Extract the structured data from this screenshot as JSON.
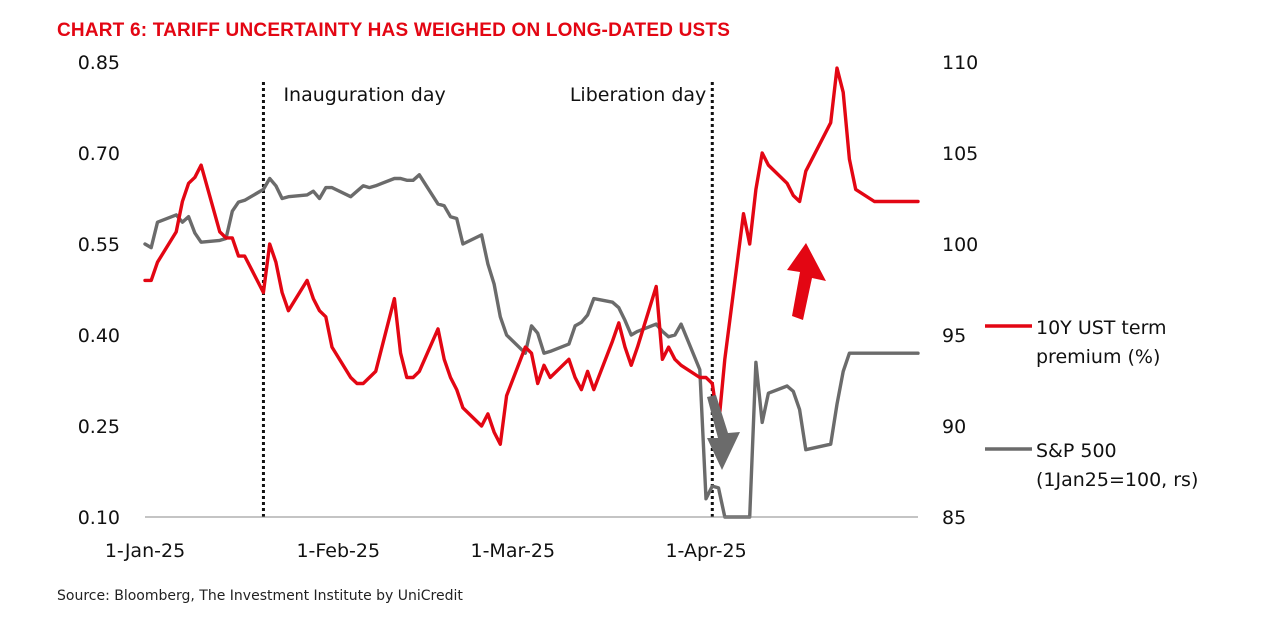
{
  "chart_data": {
    "type": "line",
    "title": "CHART 6: TARIFF UNCERTAINTY HAS WEIGHED ON LONG-DATED USTS",
    "source": "Source: Bloomberg, The Investment Institute by UniCredit",
    "x_ticks": [
      "1-Jan-25",
      "1-Feb-25",
      "1-Mar-25",
      "1-Apr-25"
    ],
    "xlim": [
      "2025-01-01",
      "2025-05-05"
    ],
    "y_left": {
      "lim": [
        0.1,
        0.85
      ],
      "ticks": [
        "0.10",
        "0.25",
        "0.40",
        "0.55",
        "0.70",
        "0.85"
      ]
    },
    "y_right": {
      "lim": [
        85,
        110
      ],
      "ticks": [
        "85",
        "90",
        "95",
        "100",
        "105",
        "110"
      ]
    },
    "annotations": [
      {
        "label": "Inauguration day",
        "date": "2025-01-20"
      },
      {
        "label": "Liberation day",
        "date": "2025-04-02"
      }
    ],
    "legend": {
      "placement": "right"
    },
    "series": [
      {
        "name_lines": [
          "10Y UST term",
          "premium (%)"
        ],
        "axis": "left",
        "color": "#e30613",
        "x": [
          "2025-01-01",
          "2025-01-02",
          "2025-01-03",
          "2025-01-06",
          "2025-01-07",
          "2025-01-08",
          "2025-01-09",
          "2025-01-10",
          "2025-01-13",
          "2025-01-14",
          "2025-01-15",
          "2025-01-16",
          "2025-01-17",
          "2025-01-20",
          "2025-01-21",
          "2025-01-22",
          "2025-01-23",
          "2025-01-24",
          "2025-01-27",
          "2025-01-28",
          "2025-01-29",
          "2025-01-30",
          "2025-01-31",
          "2025-02-03",
          "2025-02-04",
          "2025-02-05",
          "2025-02-06",
          "2025-02-07",
          "2025-02-10",
          "2025-02-11",
          "2025-02-12",
          "2025-02-13",
          "2025-02-14",
          "2025-02-17",
          "2025-02-18",
          "2025-02-19",
          "2025-02-20",
          "2025-02-21",
          "2025-02-24",
          "2025-02-25",
          "2025-02-26",
          "2025-02-27",
          "2025-02-28",
          "2025-03-03",
          "2025-03-04",
          "2025-03-05",
          "2025-03-06",
          "2025-03-07",
          "2025-03-10",
          "2025-03-11",
          "2025-03-12",
          "2025-03-13",
          "2025-03-14",
          "2025-03-17",
          "2025-03-18",
          "2025-03-19",
          "2025-03-20",
          "2025-03-21",
          "2025-03-24",
          "2025-03-25",
          "2025-03-26",
          "2025-03-27",
          "2025-03-28",
          "2025-03-31",
          "2025-04-01",
          "2025-04-02",
          "2025-04-03",
          "2025-04-04",
          "2025-04-07",
          "2025-04-08",
          "2025-04-09",
          "2025-04-10",
          "2025-04-11",
          "2025-04-14",
          "2025-04-15",
          "2025-04-16",
          "2025-04-17",
          "2025-04-21",
          "2025-04-22",
          "2025-04-23",
          "2025-04-24",
          "2025-04-25",
          "2025-04-28",
          "2025-04-29",
          "2025-04-30",
          "2025-05-01",
          "2025-05-02",
          "2025-05-05"
        ],
        "values": [
          0.49,
          0.49,
          0.52,
          0.57,
          0.62,
          0.65,
          0.66,
          0.68,
          0.57,
          0.56,
          0.56,
          0.53,
          0.53,
          0.47,
          0.55,
          0.52,
          0.47,
          0.44,
          0.49,
          0.46,
          0.44,
          0.43,
          0.38,
          0.33,
          0.32,
          0.32,
          0.33,
          0.34,
          0.46,
          0.37,
          0.33,
          0.33,
          0.34,
          0.41,
          0.36,
          0.33,
          0.31,
          0.28,
          0.25,
          0.27,
          0.24,
          0.22,
          0.3,
          0.38,
          0.37,
          0.32,
          0.35,
          0.33,
          0.36,
          0.33,
          0.31,
          0.34,
          0.31,
          0.39,
          0.42,
          0.38,
          0.35,
          0.38,
          0.48,
          0.36,
          0.38,
          0.36,
          0.35,
          0.33,
          0.33,
          0.32,
          0.25,
          0.36,
          0.6,
          0.55,
          0.64,
          0.7,
          0.68,
          0.65,
          0.63,
          0.62,
          0.67,
          0.75,
          0.84,
          0.8,
          0.69,
          0.64,
          0.62,
          0.62,
          0.62,
          0.62,
          0.62,
          0.62
        ]
      },
      {
        "name_lines": [
          "S&P 500",
          "(1Jan25=100, rs)"
        ],
        "axis": "right",
        "color": "#6b6b6b",
        "x": [
          "2025-01-01",
          "2025-01-02",
          "2025-01-03",
          "2025-01-06",
          "2025-01-07",
          "2025-01-08",
          "2025-01-09",
          "2025-01-10",
          "2025-01-13",
          "2025-01-14",
          "2025-01-15",
          "2025-01-16",
          "2025-01-17",
          "2025-01-20",
          "2025-01-21",
          "2025-01-22",
          "2025-01-23",
          "2025-01-24",
          "2025-01-27",
          "2025-01-28",
          "2025-01-29",
          "2025-01-30",
          "2025-01-31",
          "2025-02-03",
          "2025-02-04",
          "2025-02-05",
          "2025-02-06",
          "2025-02-07",
          "2025-02-10",
          "2025-02-11",
          "2025-02-12",
          "2025-02-13",
          "2025-02-14",
          "2025-02-17",
          "2025-02-18",
          "2025-02-19",
          "2025-02-20",
          "2025-02-21",
          "2025-02-24",
          "2025-02-25",
          "2025-02-26",
          "2025-02-27",
          "2025-02-28",
          "2025-03-03",
          "2025-03-04",
          "2025-03-05",
          "2025-03-06",
          "2025-03-07",
          "2025-03-10",
          "2025-03-11",
          "2025-03-12",
          "2025-03-13",
          "2025-03-14",
          "2025-03-17",
          "2025-03-18",
          "2025-03-19",
          "2025-03-20",
          "2025-03-21",
          "2025-03-24",
          "2025-03-25",
          "2025-03-26",
          "2025-03-27",
          "2025-03-28",
          "2025-03-31",
          "2025-04-01",
          "2025-04-02",
          "2025-04-03",
          "2025-04-04",
          "2025-04-07",
          "2025-04-08",
          "2025-04-09",
          "2025-04-10",
          "2025-04-11",
          "2025-04-14",
          "2025-04-15",
          "2025-04-16",
          "2025-04-17",
          "2025-04-21",
          "2025-04-22",
          "2025-04-23",
          "2025-04-24",
          "2025-04-25",
          "2025-04-28",
          "2025-04-29",
          "2025-04-30",
          "2025-05-01",
          "2025-05-02",
          "2025-05-05"
        ],
        "values": [
          100.0,
          99.8,
          101.2,
          101.6,
          101.2,
          101.5,
          100.6,
          100.1,
          100.2,
          100.3,
          101.8,
          102.3,
          102.4,
          103.0,
          103.6,
          103.2,
          102.5,
          102.6,
          102.7,
          102.9,
          102.5,
          103.1,
          103.1,
          102.6,
          102.9,
          103.2,
          103.1,
          103.2,
          103.6,
          103.6,
          103.5,
          103.5,
          103.8,
          102.2,
          102.1,
          101.5,
          101.4,
          100.0,
          100.5,
          98.9,
          97.8,
          96.0,
          95.0,
          94.0,
          95.5,
          95.1,
          94.0,
          94.1,
          94.5,
          95.5,
          95.7,
          96.1,
          97.0,
          96.8,
          96.5,
          95.8,
          95.0,
          95.2,
          95.6,
          95.2,
          94.9,
          95.0,
          95.6,
          93.1,
          86.0,
          86.7,
          86.6,
          85.0,
          85.0,
          85.0,
          93.5,
          90.2,
          91.8,
          92.2,
          91.9,
          90.9,
          88.7,
          89.0,
          91.2,
          93.0,
          94.0,
          94.0,
          94.0,
          94.0,
          94.0,
          94.0,
          94.0,
          94.0
        ]
      }
    ]
  }
}
